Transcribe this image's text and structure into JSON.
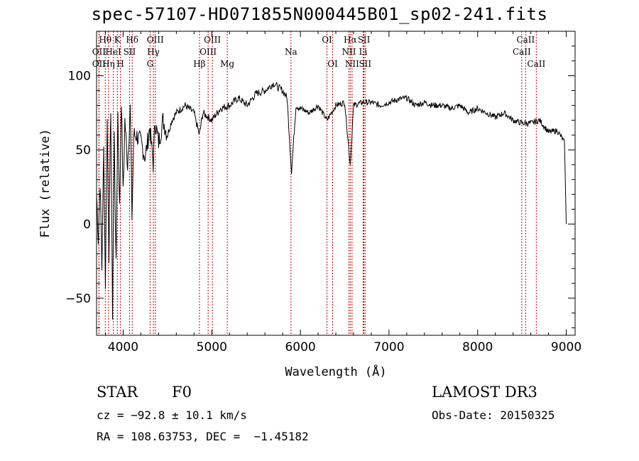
{
  "chart_data": {
    "type": "line",
    "title": "spec-57107-HD071855N000445B01_sp02-241.fits",
    "xlabel": "Wavelength (Å)",
    "ylabel": "Flux (relative)",
    "xlim": [
      3700,
      9100
    ],
    "ylim": [
      -75,
      130
    ],
    "xticks": [
      4000,
      5000,
      6000,
      7000,
      8000,
      9000
    ],
    "yticks": [
      -50,
      0,
      50,
      100
    ],
    "grid": false,
    "line_color": "#000000",
    "marker_color": "#cc0000",
    "series": [
      {
        "values_x": [
          3700,
          3720,
          3740,
          3760,
          3780,
          3800,
          3820,
          3840,
          3860,
          3880,
          3900,
          3920,
          3940,
          3960,
          3980,
          4000,
          4020,
          4050,
          4080,
          4100,
          4120,
          4150,
          4200,
          4250,
          4300,
          4340,
          4360,
          4400,
          4450,
          4500,
          4550,
          4600,
          4700,
          4800,
          4860,
          4900,
          5000,
          5100,
          5200,
          5300,
          5400,
          5500,
          5600,
          5700,
          5750,
          5800,
          5850,
          5900,
          5950,
          6000,
          6100,
          6200,
          6300,
          6400,
          6500,
          6563,
          6600,
          6700,
          6800,
          6900,
          7000,
          7100,
          7200,
          7300,
          7400,
          7500,
          7600,
          7700,
          7800,
          7900,
          8000,
          8100,
          8200,
          8300,
          8400,
          8500,
          8600,
          8700,
          8800,
          8900,
          8980,
          9000
        ],
        "values_y": [
          20,
          -10,
          30,
          -30,
          50,
          -40,
          70,
          -20,
          80,
          -60,
          60,
          -30,
          75,
          10,
          85,
          20,
          70,
          40,
          78,
          5,
          60,
          60,
          55,
          45,
          65,
          40,
          70,
          55,
          70,
          60,
          70,
          75,
          80,
          75,
          60,
          75,
          70,
          78,
          80,
          85,
          80,
          88,
          90,
          95,
          92,
          90,
          85,
          35,
          80,
          78,
          75,
          80,
          70,
          80,
          82,
          40,
          80,
          82,
          82,
          80,
          82,
          84,
          85,
          80,
          82,
          80,
          80,
          78,
          80,
          75,
          78,
          75,
          72,
          75,
          70,
          68,
          68,
          70,
          62,
          63,
          55,
          0
        ]
      }
    ],
    "lines": [
      {
        "label": "Hθ",
        "wave": 3798,
        "row": 1,
        "pos": "top"
      },
      {
        "label": "OII",
        "wave": 3727,
        "row": 2,
        "pos": "top"
      },
      {
        "label": "OII",
        "wave": 3727,
        "row": 3,
        "pos": "top"
      },
      {
        "label": "Hη",
        "wave": 3835,
        "row": 3,
        "pos": "top"
      },
      {
        "label": "HeI",
        "wave": 3889,
        "row": 2,
        "pos": "top"
      },
      {
        "label": "K",
        "wave": 3934,
        "row": 1,
        "pos": "top"
      },
      {
        "label": "H",
        "wave": 3969,
        "row": 3,
        "pos": "top"
      },
      {
        "label": "SII",
        "wave": 4072,
        "row": 2,
        "pos": "top"
      },
      {
        "label": "Hδ",
        "wave": 4102,
        "row": 1,
        "pos": "top"
      },
      {
        "label": "OIII",
        "wave": 4363,
        "row": 1,
        "pos": "top"
      },
      {
        "label": "Hγ",
        "wave": 4341,
        "row": 2,
        "pos": "top"
      },
      {
        "label": "G",
        "wave": 4304,
        "row": 3,
        "pos": "top"
      },
      {
        "label": "Hβ",
        "wave": 4861,
        "row": 3,
        "pos": "top"
      },
      {
        "label": "OIII",
        "wave": 4959,
        "row": 2,
        "pos": "top"
      },
      {
        "label": "OIII",
        "wave": 5007,
        "row": 1,
        "pos": "top"
      },
      {
        "label": "Mg",
        "wave": 5175,
        "row": 3,
        "pos": "top"
      },
      {
        "label": "Na",
        "wave": 5894,
        "row": 2,
        "pos": "top"
      },
      {
        "label": "OI",
        "wave": 6300,
        "row": 1,
        "pos": "top"
      },
      {
        "label": "OI",
        "wave": 6364,
        "row": 3,
        "pos": "top"
      },
      {
        "label": "Hα",
        "wave": 6563,
        "row": 1,
        "pos": "top"
      },
      {
        "label": "NII",
        "wave": 6548,
        "row": 2,
        "pos": "top"
      },
      {
        "label": "NII",
        "wave": 6583,
        "row": 3,
        "pos": "top"
      },
      {
        "label": "SII",
        "wave": 6717,
        "row": 1,
        "pos": "top"
      },
      {
        "label": "Li",
        "wave": 6708,
        "row": 2,
        "pos": "top"
      },
      {
        "label": "SII",
        "wave": 6731,
        "row": 3,
        "pos": "top"
      },
      {
        "label": "CaII",
        "wave": 8542,
        "row": 1,
        "pos": "top"
      },
      {
        "label": "CaII",
        "wave": 8498,
        "row": 2,
        "pos": "top"
      },
      {
        "label": "CaII",
        "wave": 8662,
        "row": 3,
        "pos": "top"
      }
    ]
  },
  "info": {
    "class": "STAR",
    "subclass": "F0",
    "survey": "LAMOST DR3",
    "cz": "cz = −92.8 ± 10.1 km/s",
    "obs_date": "Obs-Date: 20150325",
    "radec": "RA = 108.63753, DEC =  −1.45182"
  }
}
